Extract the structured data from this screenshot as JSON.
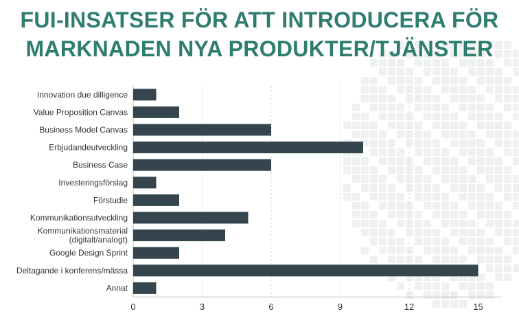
{
  "title_lines": [
    "FUI-INSATSER FÖR ATT INTRODUCERA FÖR",
    "MARKNADEN NYA PRODUKTER/TJÄNSTER"
  ],
  "colors": {
    "title": "#2e7d6e",
    "bar": "#34454d",
    "grid": "#d9d9d9",
    "text": "#333333"
  },
  "chart_data": {
    "type": "bar",
    "orientation": "horizontal",
    "title": "FUI-INSATSER FÖR ATT INTRODUCERA FÖR MARKNADEN NYA PRODUKTER/TJÄNSTER",
    "categories": [
      "Innovation due dilligence",
      "Value Proposition Canvas",
      "Business Model Canvas",
      "Erbjudandeutveckling",
      "Business Case",
      "Investeringsförslag",
      "Förstudie",
      "Kommunikationsutveckling",
      [
        "Kommunikationsmaterial",
        "(digitalt/analogt)"
      ],
      "Google Design Sprint",
      "Deltagande i konferens/mässa",
      "Annat"
    ],
    "values": [
      1,
      2,
      6,
      10,
      6,
      1,
      2,
      5,
      4,
      2,
      15,
      1
    ],
    "xlim": [
      0,
      16
    ],
    "xticks": [
      0,
      3,
      6,
      9,
      12,
      15
    ],
    "grid": "vertical dashed",
    "legend": "none"
  }
}
